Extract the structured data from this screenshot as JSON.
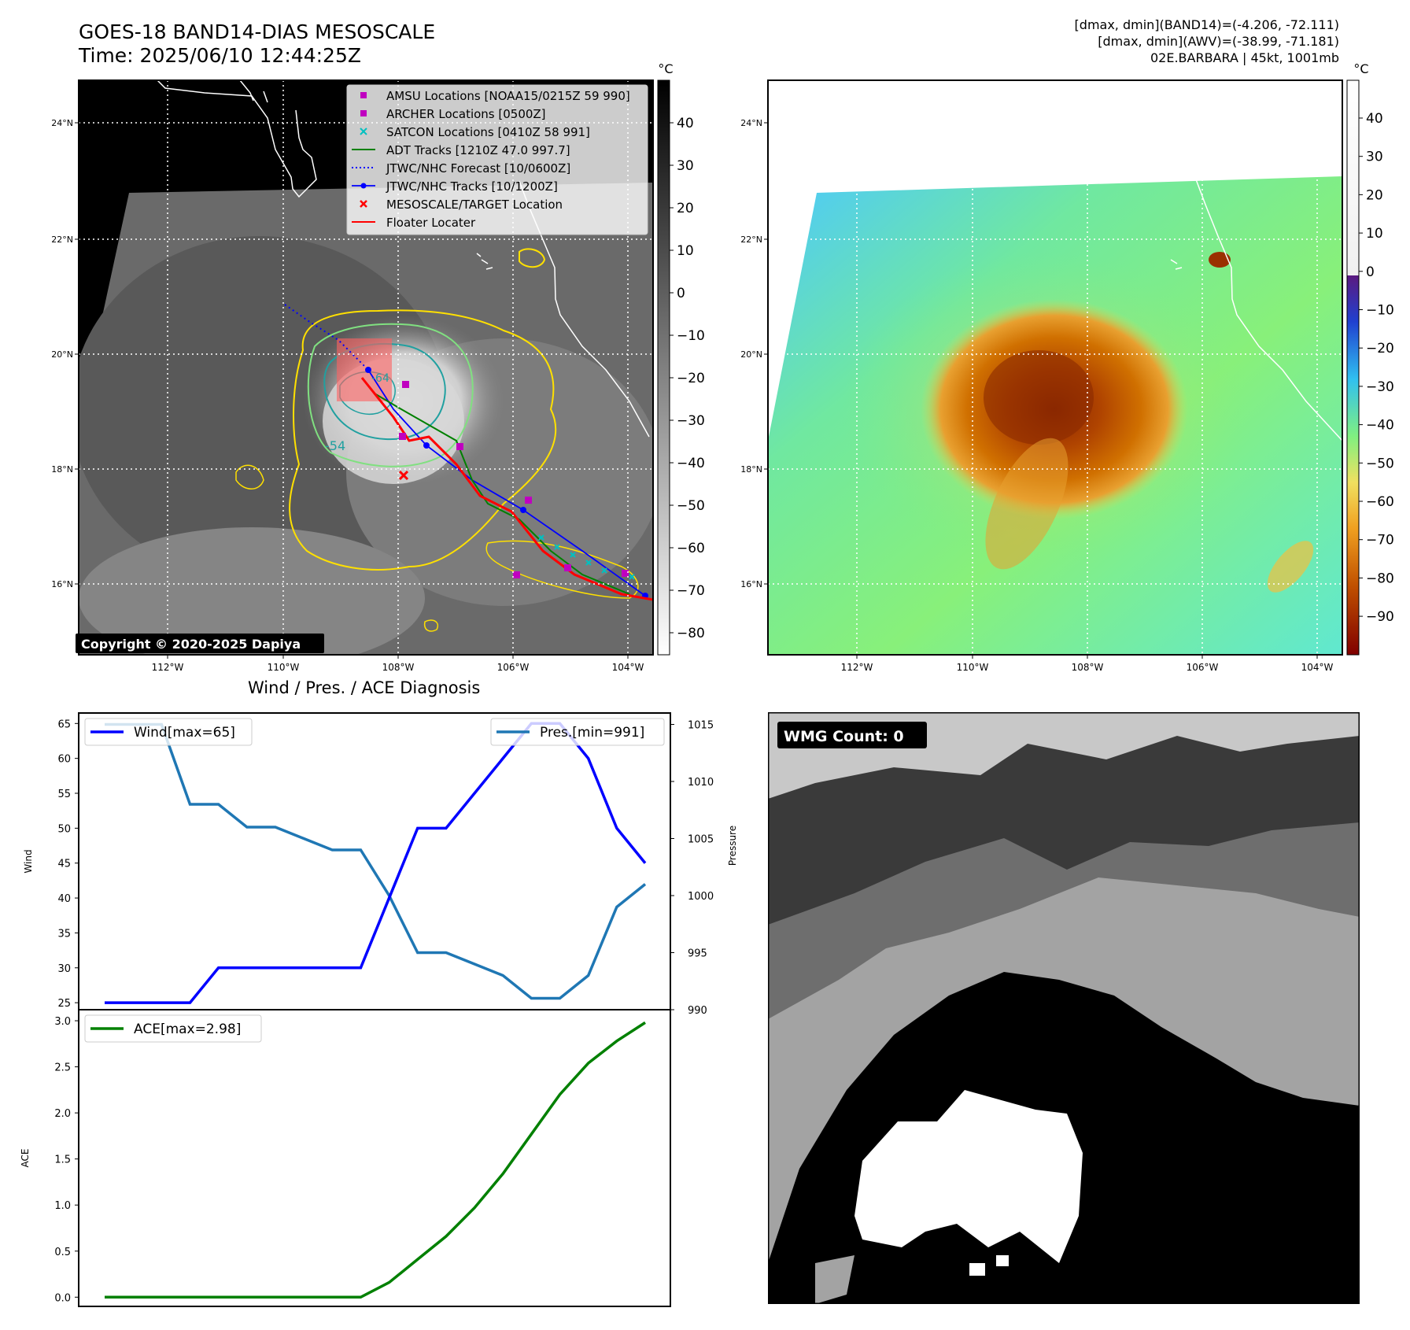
{
  "header": {
    "title_line1": "GOES-18 BAND14-DIAS MESOSCALE",
    "title_line2": "Time: 2025/06/10 12:44:25Z",
    "info_line1": "[dmax, dmin](BAND14)=(-4.206, -72.111)",
    "info_line2": "[dmax, dmin](AWV)=(-38.99, -71.181)",
    "info_line3": "02E.BARBARA | 45kt, 1001mb"
  },
  "map_axes": {
    "lon_ticks": [
      "112°W",
      "110°W",
      "108°W",
      "106°W",
      "104°W"
    ],
    "lat_ticks": [
      "24°N",
      "22°N",
      "20°N",
      "18°N",
      "16°N"
    ]
  },
  "ir_map": {
    "copyright": "Copyright © 2020-2025 Dapiya",
    "contour_labels": [
      "-64",
      "-54"
    ],
    "legend": [
      {
        "label": "AMSU Locations [NOAA15/0215Z 59 990]",
        "color": "#c000c0",
        "marker": "square"
      },
      {
        "label": "ARCHER Locations [0500Z]",
        "color": "#c000c0",
        "marker": "square"
      },
      {
        "label": "SATCON Locations [0410Z 58 991]",
        "color": "#00c0c0",
        "marker": "x"
      },
      {
        "label": "ADT Tracks [1210Z 47.0 997.7]",
        "color": "#008000",
        "marker": "line"
      },
      {
        "label": "JTWC/NHC Forecast [10/0600Z]",
        "color": "#0000ff",
        "marker": "dotted"
      },
      {
        "label": "JTWC/NHC Tracks [10/1200Z]",
        "color": "#0000ff",
        "marker": "line-dot"
      },
      {
        "label": "MESOSCALE/TARGET Location",
        "color": "#ff0000",
        "marker": "x"
      },
      {
        "label": "Floater Locater",
        "color": "#ff0000",
        "marker": "line"
      }
    ],
    "colorbar_unit": "°C",
    "colorbar_ticks": [
      "40",
      "30",
      "20",
      "10",
      "0",
      "−10",
      "−20",
      "−30",
      "−40",
      "−50",
      "−60",
      "−70",
      "−80"
    ]
  },
  "awv_map": {
    "colorbar_unit": "°C",
    "colorbar_ticks": [
      "40",
      "30",
      "20",
      "10",
      "0",
      "−10",
      "−20",
      "−30",
      "−40",
      "−50",
      "−60",
      "−70",
      "−80",
      "−90"
    ]
  },
  "wmg_panel": {
    "label": "WMG Count: 0"
  },
  "colors": {
    "wind": "#0000ff",
    "pressure": "#1f77b4",
    "ace": "#008000",
    "contour_yellow": "#ffe000",
    "contour_green": "#80e080",
    "contour_teal": "#20a0a0"
  },
  "chart_data": [
    {
      "type": "line",
      "title": "Wind / Pres. / ACE Diagnosis",
      "x_count": 20,
      "ylabel": "Wind",
      "y2label": "Pressure",
      "ylim": [
        24,
        66.5
      ],
      "y2lim": [
        990,
        1016
      ],
      "yticks": [
        25,
        30,
        35,
        40,
        45,
        50,
        55,
        60,
        65
      ],
      "y2ticks": [
        990,
        995,
        1000,
        1005,
        1010,
        1015
      ],
      "series": [
        {
          "name": "Wind[max=65]",
          "axis": "left",
          "values": [
            25,
            25,
            25,
            25,
            30,
            30,
            30,
            30,
            30,
            30,
            40,
            50,
            50,
            55,
            60,
            65,
            65,
            60,
            50,
            45
          ]
        },
        {
          "name": "Pres.[min=991]",
          "axis": "right",
          "values": [
            1015,
            1015,
            1015,
            1008,
            1008,
            1006,
            1006,
            1005,
            1004,
            1004,
            1000,
            995,
            995,
            994,
            993,
            991,
            991,
            993,
            999,
            1001
          ]
        }
      ]
    },
    {
      "type": "line",
      "x_count": 20,
      "ylabel": "ACE",
      "ylim": [
        -0.1,
        3.12
      ],
      "yticks": [
        "0.0",
        "0.5",
        "1.0",
        "1.5",
        "2.0",
        "2.5",
        "3.0"
      ],
      "series": [
        {
          "name": "ACE[max=2.98]",
          "values": [
            0,
            0,
            0,
            0,
            0,
            0,
            0,
            0,
            0,
            0,
            0.16,
            0.41,
            0.66,
            0.97,
            1.34,
            1.77,
            2.2,
            2.54,
            2.78,
            2.98
          ]
        }
      ]
    }
  ]
}
